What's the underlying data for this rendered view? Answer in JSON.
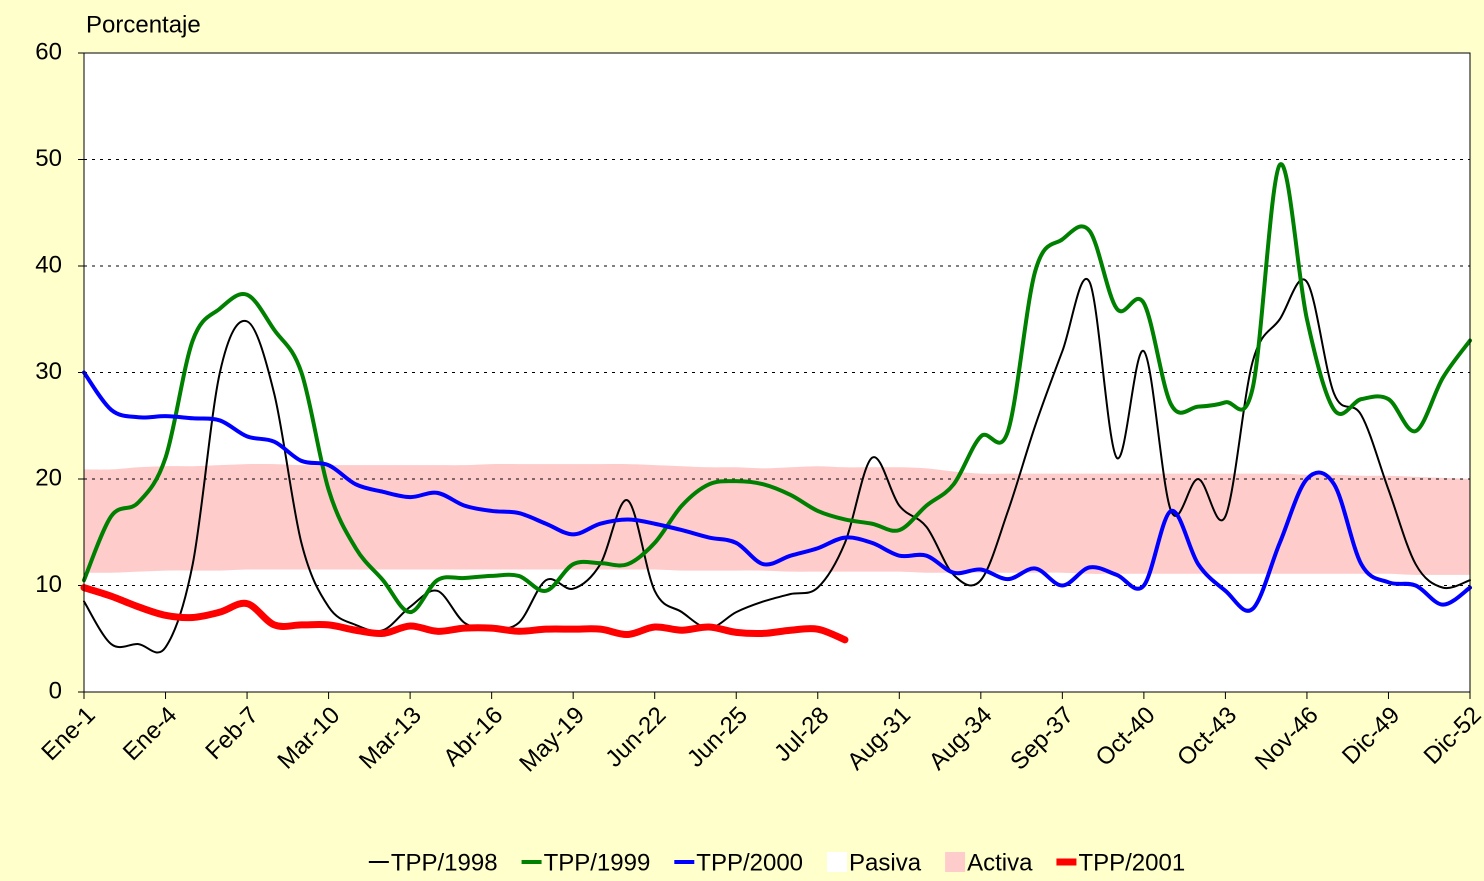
{
  "chart_data": {
    "type": "line",
    "y_label": "Porcentaje",
    "categories": [
      "Ene-1",
      null,
      null,
      "Ene-4",
      null,
      null,
      "Feb-7",
      null,
      null,
      "Mar-10",
      null,
      null,
      "Mar-13",
      null,
      null,
      "Abr-16",
      null,
      null,
      "May-19",
      null,
      null,
      "Jun-22",
      null,
      null,
      "Jun-25",
      null,
      null,
      "Jul-28",
      null,
      null,
      "Aug-31",
      null,
      null,
      "Aug-34",
      null,
      null,
      "Sep-37",
      null,
      null,
      "Oct-40",
      null,
      null,
      "Oct-43",
      null,
      null,
      "Nov-46",
      null,
      null,
      "Dic-49",
      null,
      null,
      "Dic-52"
    ],
    "ylim": [
      0,
      60
    ],
    "yticks": [
      0,
      10,
      20,
      30,
      40,
      50,
      60
    ],
    "grid": true,
    "legend": "bottom",
    "series": [
      {
        "name": "TPP/1998",
        "kind": "line",
        "color": "#000000",
        "width": 2,
        "values": [
          8.5,
          4.5,
          4.5,
          4.2,
          12,
          30,
          34.8,
          28,
          14,
          8,
          6.3,
          5.8,
          8,
          9.5,
          6.5,
          6,
          6.5,
          10.5,
          9.7,
          12,
          18,
          9.5,
          7.5,
          6,
          7.5,
          8.5,
          9.2,
          9.8,
          14,
          22,
          17.5,
          15.5,
          11,
          10.5,
          17,
          25,
          32,
          38.5,
          22,
          32,
          17,
          20,
          16.5,
          31,
          35,
          38.5,
          28,
          26,
          19,
          12,
          9.8,
          10.5
        ]
      },
      {
        "name": "TPP/1999",
        "kind": "line",
        "color": "#008000",
        "width": 4,
        "values": [
          10.5,
          16.5,
          17.8,
          22,
          33,
          36,
          37.3,
          34,
          30,
          19,
          13.5,
          10.5,
          7.5,
          10.5,
          10.7,
          10.9,
          10.9,
          9.5,
          12,
          12.1,
          12,
          14,
          17.5,
          19.5,
          19.8,
          19.5,
          18.5,
          17,
          16.2,
          15.8,
          15.2,
          17.5,
          19.5,
          24,
          24.5,
          39.5,
          42.5,
          43.3,
          36,
          36.5,
          27,
          26.8,
          27.2,
          28.5,
          49.5,
          35,
          26.5,
          27.5,
          27.5,
          24.5,
          29.5,
          33
        ]
      },
      {
        "name": "TPP/2000",
        "kind": "line",
        "color": "#0000ff",
        "width": 4,
        "values": [
          30,
          26.5,
          25.8,
          25.9,
          25.7,
          25.5,
          24,
          23.5,
          21.7,
          21.3,
          19.5,
          18.8,
          18.3,
          18.7,
          17.5,
          17,
          16.8,
          15.8,
          14.8,
          15.8,
          16.2,
          15.8,
          15.2,
          14.5,
          14,
          12,
          12.8,
          13.5,
          14.5,
          14,
          12.8,
          12.8,
          11.2,
          11.5,
          10.6,
          11.6,
          10,
          11.7,
          11,
          10,
          17,
          12,
          9.5,
          7.8,
          14,
          20,
          19.5,
          12,
          10.3,
          10,
          8.2,
          9.8
        ]
      },
      {
        "name": "Pasiva",
        "kind": "area",
        "color": "#ffffff",
        "values": [
          11.2,
          11.2,
          11.3,
          11.4,
          11.4,
          11.4,
          11.5,
          11.5,
          11.5,
          11.5,
          11.5,
          11.5,
          11.5,
          11.5,
          11.5,
          11.5,
          11.5,
          11.5,
          11.5,
          11.5,
          11.5,
          11.5,
          11.4,
          11.4,
          11.4,
          11.4,
          11.3,
          11.3,
          11.3,
          11.3,
          11.3,
          11.2,
          11.2,
          11.2,
          11.2,
          11.2,
          11.2,
          11.1,
          11.1,
          11.1,
          11.1,
          11.1,
          11.1,
          11.1,
          11.1,
          11.1,
          11.1,
          11.1,
          11.1,
          11.0,
          11.0,
          11.0
        ]
      },
      {
        "name": "Activa",
        "kind": "area",
        "color": "#ffcccc",
        "values": [
          9.7,
          9.7,
          9.8,
          9.8,
          9.8,
          9.9,
          9.9,
          9.9,
          9.8,
          9.8,
          9.8,
          9.8,
          9.8,
          9.8,
          9.8,
          9.9,
          9.9,
          9.9,
          9.9,
          9.9,
          9.9,
          9.8,
          9.8,
          9.7,
          9.7,
          9.6,
          9.8,
          9.9,
          9.8,
          9.8,
          9.8,
          9.8,
          9.5,
          9.3,
          9.3,
          9.3,
          9.3,
          9.4,
          9.4,
          9.4,
          9.4,
          9.4,
          9.4,
          9.4,
          9.4,
          9.3,
          9.3,
          9.2,
          9.2,
          9.2,
          9.1,
          9.0
        ]
      },
      {
        "name": "TPP/2001",
        "kind": "line",
        "color": "#ff0000",
        "width": 7,
        "values": [
          9.8,
          9,
          8,
          7.2,
          7,
          7.5,
          8.3,
          6.3,
          6.3,
          6.3,
          5.8,
          5.5,
          6.2,
          5.7,
          6,
          6,
          5.7,
          5.9,
          5.9,
          5.9,
          5.4,
          6.1,
          5.8,
          6.1,
          5.6,
          5.5,
          5.8,
          5.9,
          4.9,
          null,
          null,
          null,
          null,
          null,
          null,
          null,
          null,
          null,
          null,
          null,
          null,
          null,
          null,
          null,
          null,
          null,
          null,
          null,
          null,
          null,
          null,
          null
        ]
      }
    ]
  }
}
